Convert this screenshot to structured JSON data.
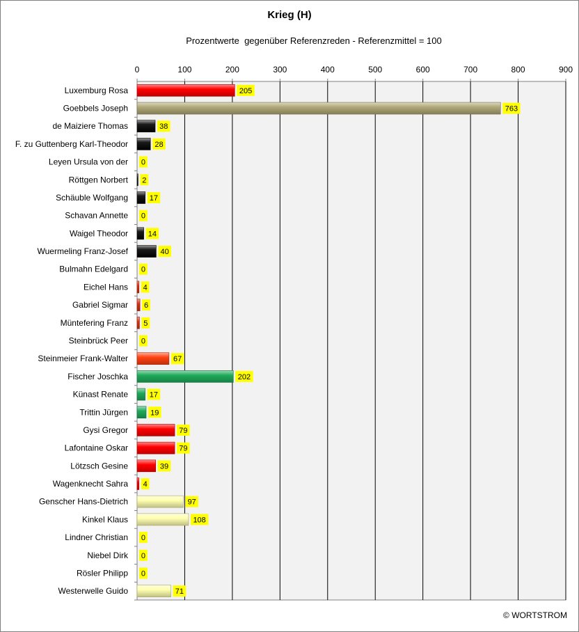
{
  "chart_data": {
    "type": "bar",
    "orientation": "horizontal",
    "title": "Krieg (H)",
    "subtitle": "Prozentwerte  gegenüber Referenzreden - Referenzmittel = 100",
    "xlim": [
      0,
      900
    ],
    "x_ticks": [
      "0",
      "100",
      "200",
      "300",
      "400",
      "500",
      "600",
      "700",
      "800",
      "900"
    ],
    "grid": "vertical",
    "categories": [
      "Luxemburg Rosa",
      "Goebbels Joseph",
      "de Maiziere Thomas",
      "F. zu Guttenberg Karl-Theodor",
      "Leyen Ursula von der",
      "Röttgen Norbert",
      "Schäuble Wolfgang",
      "Schavan Annette",
      "Waigel Theodor",
      "Wuermeling Franz-Josef",
      "Bulmahn Edelgard",
      "Eichel Hans",
      "Gabriel Sigmar",
      "Müntefering Franz",
      "Steinbrück Peer",
      "Steinmeier Frank-Walter",
      "Fischer Joschka",
      "Künast Renate",
      "Trittin Jürgen",
      "Gysi Gregor",
      "Lafontaine Oskar",
      "Lötzsch Gesine",
      "Wagenknecht Sahra",
      "Genscher Hans-Dietrich",
      "Kinkel Klaus",
      "Lindner Christian",
      "Niebel Dirk",
      "Rösler Philipp",
      "Westerwelle Guido"
    ],
    "values": [
      205,
      763,
      38,
      28,
      0,
      2,
      17,
      0,
      14,
      40,
      0,
      4,
      6,
      5,
      0,
      67,
      202,
      17,
      19,
      79,
      79,
      39,
      4,
      97,
      108,
      0,
      0,
      0,
      71
    ],
    "value_labels": [
      "205",
      "763",
      "38",
      "28",
      "0",
      "2",
      "17",
      "0",
      "14",
      "40",
      "0",
      "4",
      "6",
      "5",
      "0",
      "67",
      "202",
      "17",
      "19",
      "79",
      "79",
      "39",
      "4",
      "97",
      "108",
      "0",
      "0",
      "0",
      "71"
    ],
    "bar_colors": [
      "#ff0000",
      "#b0a878",
      "#000000",
      "#000000",
      "#000000",
      "#000000",
      "#000000",
      "#000000",
      "#000000",
      "#000000",
      "#e03010",
      "#e03010",
      "#e03010",
      "#e03010",
      "#e03010",
      "#ff4010",
      "#1faa5a",
      "#1faa5a",
      "#1faa5a",
      "#ff0000",
      "#ff0000",
      "#ff0000",
      "#ff0000",
      "#ffffb0",
      "#ffffb0",
      "#ffffb0",
      "#ffffb0",
      "#ffffb0",
      "#ffffb0"
    ],
    "label_background": "#ffff00",
    "plot_background": "#f2f2f2"
  },
  "copyright": "© WORTSTROM"
}
